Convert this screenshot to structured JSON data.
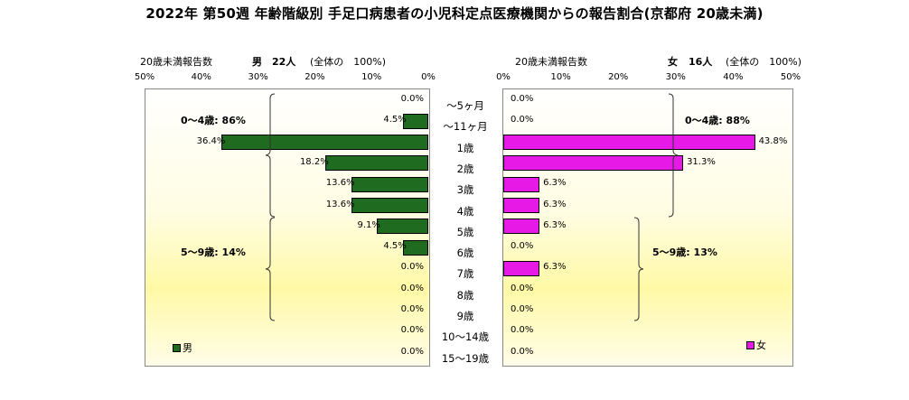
{
  "title": "2022年 第50週  年齢階級別 手足口病患者の小児科定点医療機関からの報告割合(京都府 20歳未満)",
  "colors": {
    "male": "#1f6b1f",
    "female": "#e619e6"
  },
  "icons": {
    "legend_swatch": "square-swatch"
  },
  "chart_data": [
    {
      "type": "bar",
      "orientation": "horizontal",
      "side": "left",
      "header": {
        "count_label": "20歳未満報告数",
        "sex_label": "男",
        "count": "22人",
        "share": "(全体の　100%)"
      },
      "categories": [
        "～5ヶ月",
        "～11ヶ月",
        "1歳",
        "2歳",
        "3歳",
        "4歳",
        "5歳",
        "6歳",
        "7歳",
        "8歳",
        "9歳",
        "10～14歳",
        "15～19歳"
      ],
      "series": [
        {
          "name": "男",
          "values": [
            0.0,
            4.5,
            36.4,
            18.2,
            13.6,
            13.6,
            9.1,
            4.5,
            0.0,
            0.0,
            0.0,
            0.0,
            0.0
          ]
        }
      ],
      "data_labels": [
        "0.0%",
        "4.5%",
        "36.4%",
        "18.2%",
        "13.6%",
        "13.6%",
        "9.1%",
        "4.5%",
        "0.0%",
        "0.0%",
        "0.0%",
        "0.0%",
        "0.0%"
      ],
      "xlim": [
        0,
        50
      ],
      "x_ticks": [
        "50%",
        "40%",
        "30%",
        "20%",
        "10%",
        "0%"
      ],
      "groups": [
        {
          "label": "0～4歳: 86%",
          "from": 0,
          "to": 5
        },
        {
          "label": "5～9歳: 14%",
          "from": 6,
          "to": 10
        }
      ],
      "legend": {
        "label": "男",
        "position": "bottom-left"
      },
      "grid": false
    },
    {
      "type": "bar",
      "orientation": "horizontal",
      "side": "right",
      "header": {
        "count_label": "20歳未満報告数",
        "sex_label": "女",
        "count": "16人",
        "share": "(全体の　100%)"
      },
      "categories": [
        "～5ヶ月",
        "～11ヶ月",
        "1歳",
        "2歳",
        "3歳",
        "4歳",
        "5歳",
        "6歳",
        "7歳",
        "8歳",
        "9歳",
        "10～14歳",
        "15～19歳"
      ],
      "series": [
        {
          "name": "女",
          "values": [
            0.0,
            0.0,
            43.8,
            31.3,
            6.3,
            6.3,
            6.3,
            0.0,
            6.3,
            0.0,
            0.0,
            0.0,
            0.0
          ]
        }
      ],
      "data_labels": [
        "0.0%",
        "0.0%",
        "43.8%",
        "31.3%",
        "6.3%",
        "6.3%",
        "6.3%",
        "0.0%",
        "6.3%",
        "0.0%",
        "0.0%",
        "0.0%",
        "0.0%"
      ],
      "xlim": [
        0,
        50
      ],
      "x_ticks": [
        "0%",
        "10%",
        "20%",
        "30%",
        "40%",
        "50%"
      ],
      "groups": [
        {
          "label": "0～4歳: 88%",
          "from": 0,
          "to": 5
        },
        {
          "label": "5～9歳: 13%",
          "from": 6,
          "to": 10
        }
      ],
      "legend": {
        "label": "女",
        "position": "bottom-right"
      },
      "grid": false
    }
  ]
}
